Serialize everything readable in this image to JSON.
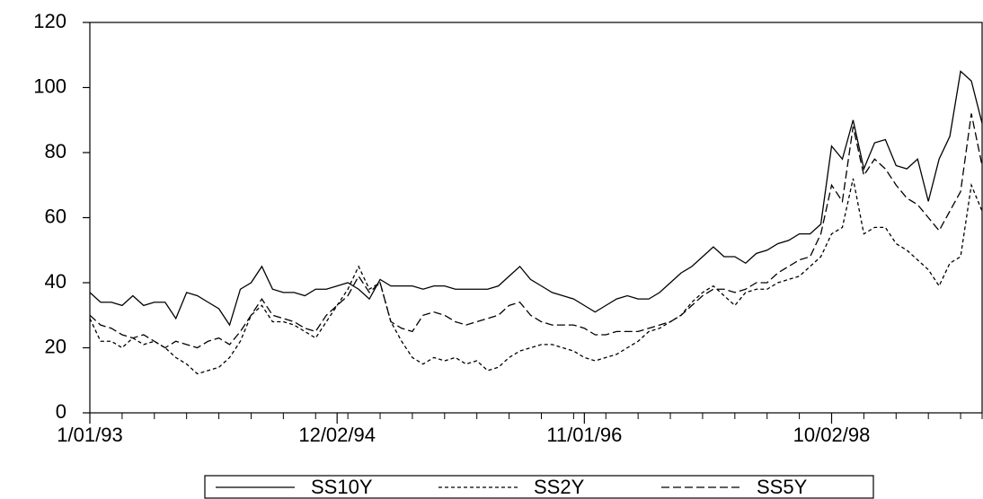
{
  "chart_data": {
    "type": "line",
    "categories": [
      "1/01/93",
      null,
      null,
      null,
      null,
      null,
      null,
      null,
      null,
      null,
      null,
      null,
      null,
      null,
      null,
      null,
      null,
      null,
      null,
      null,
      null,
      null,
      null,
      "12/02/94",
      null,
      null,
      null,
      null,
      null,
      null,
      null,
      null,
      null,
      null,
      null,
      null,
      null,
      null,
      null,
      null,
      null,
      null,
      null,
      null,
      null,
      null,
      "11/01/96",
      null,
      null,
      null,
      null,
      null,
      null,
      null,
      null,
      null,
      null,
      null,
      null,
      null,
      null,
      null,
      null,
      null,
      null,
      null,
      null,
      null,
      null,
      "10/02/98",
      null,
      null,
      null,
      null,
      null,
      null,
      null,
      null,
      null,
      null,
      null,
      null,
      null,
      null
    ],
    "series": [
      {
        "name": "SS10Y",
        "color": "#000000",
        "dash": "none",
        "values": [
          37,
          34,
          34,
          33,
          36,
          33,
          34,
          34,
          29,
          37,
          36,
          34,
          32,
          27,
          38,
          40,
          45,
          38,
          37,
          37,
          36,
          38,
          38,
          39,
          40,
          38,
          35,
          41,
          39,
          39,
          39,
          38,
          39,
          39,
          38,
          38,
          38,
          38,
          39,
          42,
          45,
          41,
          39,
          37,
          36,
          35,
          33,
          31,
          33,
          35,
          36,
          35,
          35,
          37,
          40,
          43,
          45,
          48,
          51,
          48,
          48,
          46,
          49,
          50,
          52,
          53,
          55,
          55,
          58,
          82,
          78,
          90,
          75,
          83,
          84,
          76,
          75,
          78,
          65,
          78,
          85,
          105,
          102,
          89
        ]
      },
      {
        "name": "SS2Y",
        "color": "#000000",
        "dash": "4,3",
        "values": [
          29,
          22,
          22,
          20,
          23,
          21,
          22,
          20,
          17,
          15,
          12,
          13,
          14,
          17,
          22,
          30,
          33,
          28,
          28,
          27,
          25,
          23,
          28,
          33,
          38,
          45,
          38,
          40,
          28,
          22,
          17,
          15,
          17,
          16,
          17,
          15,
          16,
          13,
          14,
          17,
          19,
          20,
          21,
          21,
          20,
          19,
          17,
          16,
          17,
          18,
          20,
          22,
          25,
          26,
          28,
          30,
          34,
          37,
          39,
          36,
          33,
          37,
          38,
          38,
          40,
          41,
          42,
          45,
          48,
          55,
          57,
          72,
          55,
          57,
          57,
          52,
          50,
          47,
          44,
          39,
          46,
          48,
          70,
          62
        ]
      },
      {
        "name": "SS5Y",
        "color": "#000000",
        "dash": "9,4",
        "values": [
          30,
          27,
          26,
          24,
          23,
          24,
          22,
          20,
          22,
          21,
          20,
          22,
          23,
          21,
          25,
          30,
          35,
          30,
          29,
          28,
          26,
          25,
          30,
          33,
          36,
          42,
          37,
          40,
          28,
          26,
          25,
          30,
          31,
          30,
          28,
          27,
          28,
          29,
          30,
          33,
          34,
          30,
          28,
          27,
          27,
          27,
          26,
          24,
          24,
          25,
          25,
          25,
          26,
          27,
          28,
          30,
          33,
          36,
          38,
          38,
          37,
          38,
          40,
          40,
          43,
          45,
          47,
          48,
          55,
          70,
          65,
          88,
          73,
          78,
          75,
          70,
          66,
          64,
          60,
          56,
          62,
          68,
          92,
          76
        ]
      }
    ],
    "ylim": [
      0,
      120
    ],
    "yticks": [
      0,
      20,
      40,
      60,
      80,
      100,
      120
    ],
    "grid": false,
    "legend": "bottom"
  }
}
